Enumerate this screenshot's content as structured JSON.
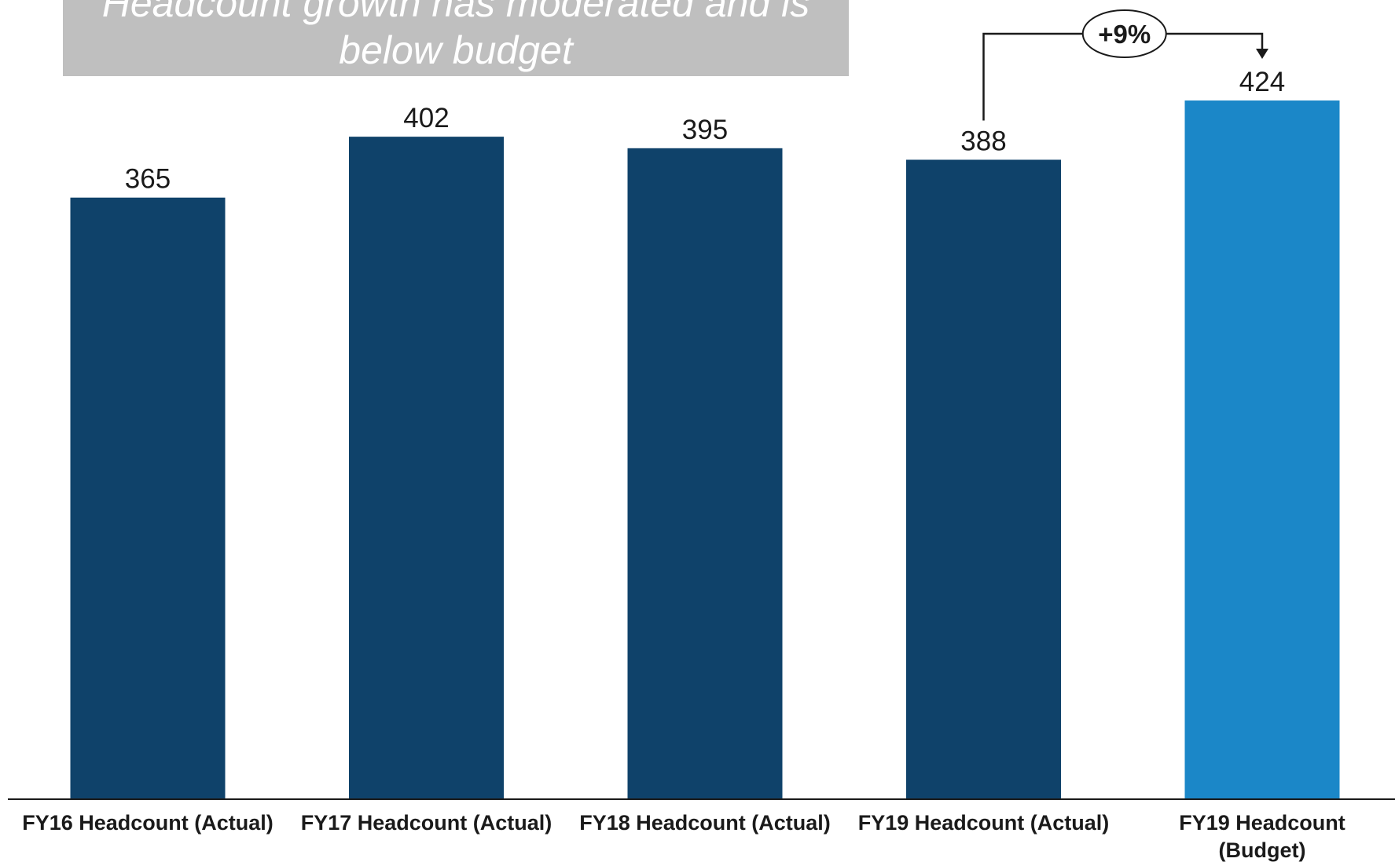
{
  "chart_data": {
    "type": "bar",
    "title": "Headcount growth has moderated and is below budget",
    "title_lines": [
      "Headcount growth has moderated and is",
      "below budget"
    ],
    "categories": [
      "FY16 Headcount (Actual)",
      "FY17 Headcount (Actual)",
      "FY18 Headcount (Actual)",
      "FY19 Headcount (Actual)",
      "FY19 Headcount (Budget)"
    ],
    "category_label_lines": [
      [
        "FY16 Headcount (Actual)"
      ],
      [
        "FY17 Headcount (Actual)"
      ],
      [
        "FY18 Headcount (Actual)"
      ],
      [
        "FY19 Headcount (Actual)"
      ],
      [
        "FY19 Headcount",
        "(Budget)"
      ]
    ],
    "values": [
      365,
      402,
      395,
      388,
      424
    ],
    "value_labels": [
      "365",
      "402",
      "395",
      "388",
      "424"
    ],
    "colors": [
      "#0f426a",
      "#0f426a",
      "#0f426a",
      "#0f426a",
      "#1b87c8"
    ],
    "xlabel": "",
    "ylabel": "",
    "ylim": [
      0,
      424
    ],
    "grid": false,
    "legend": "none",
    "annotations": [
      {
        "text": "+9%",
        "from_category": 3,
        "to_category": 4
      }
    ]
  }
}
